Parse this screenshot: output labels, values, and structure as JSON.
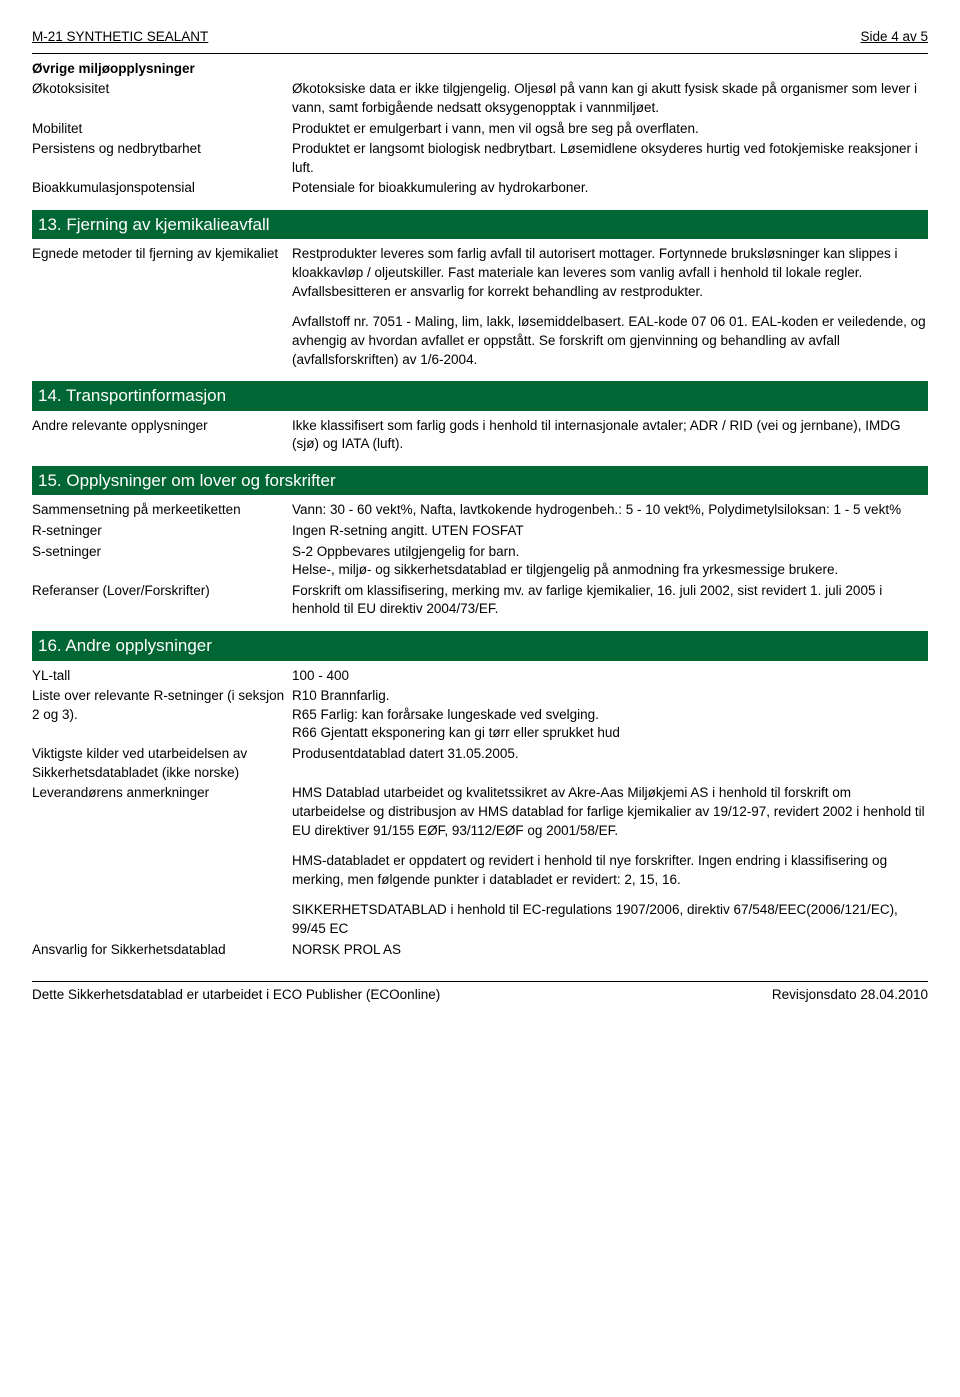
{
  "header": {
    "left": "M-21 SYNTHETIC SEALANT",
    "right": "Side 4 av 5"
  },
  "preSection": {
    "title": "Øvrige miljøopplysninger",
    "rows": [
      {
        "label": "Økotoksisitet",
        "value": "Økotoksiske data er ikke tilgjengelig. Oljesøl på vann kan gi akutt fysisk skade på organismer som lever i vann, samt forbigående nedsatt oksygenopptak i vannmiljøet."
      },
      {
        "label": "Mobilitet",
        "value": "Produktet er emulgerbart i vann, men vil også bre seg på overflaten."
      },
      {
        "label": "Persistens og nedbrytbarhet",
        "value": "Produktet er langsomt biologisk nedbrytbart. Løsemidlene oksyderes hurtig ved fotokjemiske reaksjoner i luft."
      },
      {
        "label": "Bioakkumulasjonspotensial",
        "value": "Potensiale for bioakkumulering av hydrokarboner."
      }
    ]
  },
  "section13": {
    "banner": "13. Fjerning av kjemikalieavfall",
    "rows": [
      {
        "label": "Egnede metoder til fjerning av kjemikaliet",
        "value": "Restprodukter leveres som farlig avfall til autorisert mottager. Fortynnede bruksløsninger kan slippes i kloakkavløp / oljeutskiller. Fast materiale kan leveres som vanlig avfall i henhold til lokale regler. Avfallsbesitteren er ansvarlig for korrekt behandling av restprodukter."
      }
    ],
    "extra": "Avfallstoff nr. 7051 - Maling, lim, lakk, løsemiddelbasert. EAL-kode 07 06 01. EAL-koden er veiledende, og avhengig av hvordan avfallet er oppstått. Se forskrift om gjenvinning og behandling av avfall (avfallsforskriften) av 1/6-2004."
  },
  "section14": {
    "banner": "14. Transportinformasjon",
    "rows": [
      {
        "label": "Andre relevante opplysninger",
        "value": "Ikke klassifisert som farlig gods i henhold til internasjonale avtaler; ADR / RID (vei og jernbane), IMDG (sjø) og IATA (luft)."
      }
    ]
  },
  "section15": {
    "banner": "15. Opplysninger om lover og forskrifter",
    "rows": [
      {
        "label": "Sammensetning på merkeetiketten",
        "value": "Vann: 30 - 60 vekt%, Nafta, lavtkokende hydrogenbeh.: 5 - 10 vekt%, Polydimetylsiloksan: 1 - 5 vekt%"
      },
      {
        "label": "R-setninger",
        "value": "Ingen R-setning angitt. UTEN FOSFAT"
      },
      {
        "label": "S-setninger",
        "value": "S-2 Oppbevares utilgjengelig for barn.\nHelse-, miljø- og sikkerhetsdatablad er tilgjengelig på anmodning fra yrkesmessige brukere."
      },
      {
        "label": "Referanser (Lover/Forskrifter)",
        "value": "Forskrift om klassifisering, merking mv. av farlige kjemikalier, 16. juli 2002, sist revidert 1. juli 2005 i henhold til EU direktiv 2004/73/EF."
      }
    ]
  },
  "section16": {
    "banner": "16. Andre opplysninger",
    "rows": [
      {
        "label": "YL-tall",
        "value": "100 - 400"
      },
      {
        "label": "Liste over relevante R-setninger (i seksjon 2 og 3).",
        "value": "R10 Brannfarlig.\nR65 Farlig: kan forårsake lungeskade ved svelging.\nR66 Gjentatt eksponering kan gi tørr eller sprukket hud"
      },
      {
        "label": "Viktigste kilder ved utarbeidelsen av Sikkerhetsdatabladet (ikke norske)",
        "value": "Produsentdatablad datert 31.05.2005."
      },
      {
        "label": "Leverandørens anmerkninger",
        "value": "HMS Datablad utarbeidet og kvalitetssikret av Akre-Aas Miljøkjemi AS i henhold til forskrift om utarbeidelse og distribusjon av HMS datablad for farlige kjemikalier av 19/12-97, revidert 2002 i henhold til EU direktiver 91/155 EØF, 93/112/EØF og 2001/58/EF."
      }
    ],
    "extra1": "HMS-databladet er oppdatert og revidert i henhold til nye forskrifter. Ingen endring i klassifisering og merking, men følgende punkter i databladet er revidert: 2, 15, 16.",
    "extra2": "SIKKERHETSDATABLAD i henhold til EC-regulations 1907/2006, direktiv 67/548/EEC(2006/121/EC), 99/45 EC",
    "rows2": [
      {
        "label": "Ansvarlig for Sikkerhetsdatablad",
        "value": "NORSK PROL AS"
      }
    ]
  },
  "footer": {
    "left": "Dette Sikkerhetsdatablad er utarbeidet i ECO Publisher (ECOonline)",
    "right": "Revisjonsdato 28.04.2010"
  },
  "colors": {
    "banner_bg": "#006633",
    "banner_text": "#ffffff",
    "text": "#000000",
    "bg": "#ffffff"
  }
}
